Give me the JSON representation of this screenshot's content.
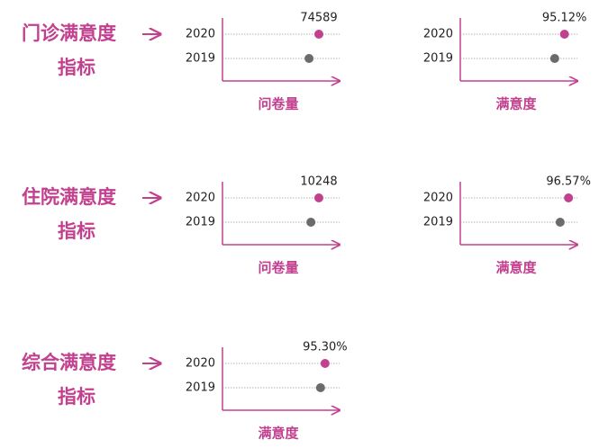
{
  "sections": [
    {
      "title_lines": [
        "门诊满意度",
        "指标"
      ]
    },
    {
      "title_lines": [
        "住院满意度",
        "指标"
      ]
    },
    {
      "title_lines": [
        "综合满意度",
        "指标"
      ]
    }
  ],
  "chart_data": [
    {
      "type": "dot",
      "categories": [
        "2020",
        "2019"
      ],
      "values": [
        74589,
        67000
      ],
      "value_labels": [
        "74589",
        null
      ],
      "colors": [
        "#c2418f",
        "#6b6b6b"
      ],
      "axis_color": "#c2418f",
      "xlim": [
        0,
        90600
      ],
      "x_label": "问卷量"
    },
    {
      "type": "dot",
      "categories": [
        "2020",
        "2019"
      ],
      "values": [
        95.12,
        94.08
      ],
      "value_labels": [
        "95.12%",
        null
      ],
      "colors": [
        "#c2418f",
        "#6b6b6b"
      ],
      "axis_color": "#c2418f",
      "xlim": [
        84,
        96.5
      ],
      "x_label": "满意度"
    },
    {
      "type": "dot",
      "categories": [
        "2020",
        "2019"
      ],
      "values": [
        10248,
        9400
      ],
      "value_labels": [
        "10248",
        null
      ],
      "colors": [
        "#c2418f",
        "#6b6b6b"
      ],
      "axis_color": "#c2418f",
      "xlim": [
        0,
        12450
      ],
      "x_label": "问卷量"
    },
    {
      "type": "dot",
      "categories": [
        "2020",
        "2019"
      ],
      "values": [
        96.57,
        95.6
      ],
      "value_labels": [
        "96.57%",
        null
      ],
      "colors": [
        "#c2418f",
        "#6b6b6b"
      ],
      "axis_color": "#c2418f",
      "xlim": [
        84,
        97.6
      ],
      "x_label": "满意度"
    },
    {
      "type": "dot",
      "categories": [
        "2020",
        "2019"
      ],
      "values": [
        95.3,
        94.8
      ],
      "value_labels": [
        "95.30%",
        null
      ],
      "colors": [
        "#c2418f",
        "#6b6b6b"
      ],
      "axis_color": "#c2418f",
      "xlim": [
        84,
        96.9
      ],
      "x_label": "满意度"
    }
  ]
}
